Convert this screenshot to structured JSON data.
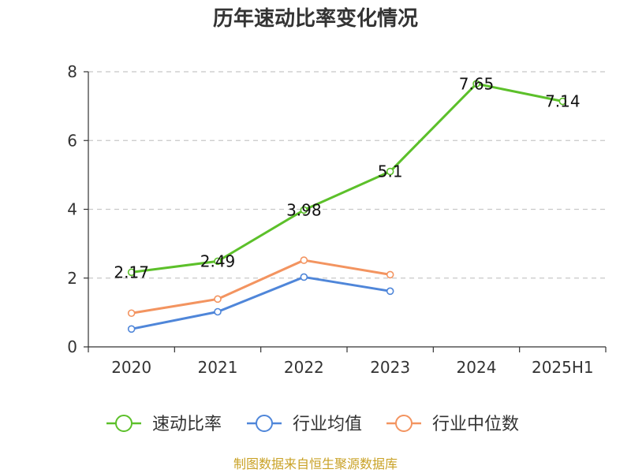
{
  "chart_data": {
    "type": "line",
    "title": "历年速动比率变化情况",
    "categories": [
      "2020",
      "2021",
      "2022",
      "2023",
      "2024",
      "2025H1"
    ],
    "ylim": [
      0,
      8
    ],
    "yticks": [
      "0",
      "2",
      "4",
      "6",
      "8"
    ],
    "grid": true,
    "legend_position": "bottom",
    "series": [
      {
        "name": "速动比率",
        "color": "#5cc02a",
        "values": [
          2.17,
          2.49,
          3.98,
          5.1,
          7.65,
          7.14
        ],
        "labels": [
          "2.17",
          "2.49",
          "3.98",
          "5.1",
          "7.65",
          "7.14"
        ]
      },
      {
        "name": "行业均值",
        "color": "#4f86d9",
        "values": [
          0.52,
          1.02,
          2.03,
          1.62,
          null,
          null
        ]
      },
      {
        "name": "行业中位数",
        "color": "#f39460",
        "values": [
          0.98,
          1.39,
          2.52,
          2.1,
          null,
          null
        ]
      }
    ],
    "source": "制图数据来自恒生聚源数据库"
  }
}
